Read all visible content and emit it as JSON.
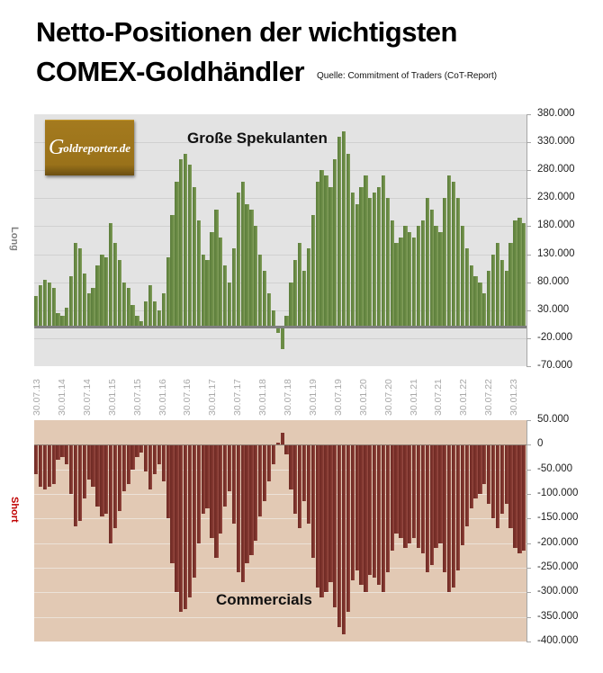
{
  "header": {
    "title_line1": "Netto-Positionen der wichtigsten",
    "title_line2": "COMEX-Goldhändler",
    "source": "Quelle: Commitment of Traders (CoT-Report)"
  },
  "logo": {
    "initial": "G",
    "text": "oldreporter.de"
  },
  "colors": {
    "long_bar": "#6b8c45",
    "short_bar": "#7e332c",
    "top_plot_bg": "#e3e3e3",
    "bottom_plot_bg": "#e2c9b4",
    "long_label": "#808080",
    "short_label": "#c00000"
  },
  "chart_data": [
    {
      "type": "bar",
      "title": "Große Spekulanten",
      "ylabel": "Long",
      "xlabel": "",
      "ylim": [
        -70000,
        380000
      ],
      "yticks": [
        "380.000",
        "330.000",
        "280.000",
        "230.000",
        "180.000",
        "130.000",
        "80.000",
        "30.000",
        "-20.000",
        "-70.000"
      ],
      "ytick_values": [
        380000,
        330000,
        280000,
        230000,
        180000,
        130000,
        80000,
        30000,
        -20000,
        -70000
      ],
      "grid": true,
      "x_tick_labels": [
        "30.07.13",
        "30.01.14",
        "30.07.14",
        "30.01.15",
        "30.07.15",
        "30.01.16",
        "30.07.16",
        "30.01.17",
        "30.07.17",
        "30.01.18",
        "30.07.18",
        "30.01.19",
        "30.07.19",
        "30.01.20",
        "30.07.20",
        "30.01.21",
        "30.07.21",
        "30.01.22",
        "30.07.22",
        "30.01.23"
      ],
      "x_start": "2013-07",
      "x_step": "monthly",
      "values": [
        55000,
        75000,
        85000,
        80000,
        70000,
        25000,
        20000,
        35000,
        90000,
        150000,
        140000,
        95000,
        60000,
        70000,
        110000,
        130000,
        125000,
        185000,
        150000,
        120000,
        80000,
        70000,
        40000,
        20000,
        10000,
        45000,
        75000,
        45000,
        30000,
        60000,
        125000,
        200000,
        260000,
        300000,
        310000,
        290000,
        250000,
        190000,
        130000,
        120000,
        170000,
        210000,
        160000,
        110000,
        80000,
        140000,
        240000,
        260000,
        220000,
        210000,
        180000,
        130000,
        100000,
        60000,
        30000,
        -10000,
        -40000,
        20000,
        80000,
        120000,
        150000,
        100000,
        140000,
        200000,
        260000,
        280000,
        270000,
        250000,
        300000,
        340000,
        350000,
        310000,
        240000,
        220000,
        250000,
        270000,
        230000,
        240000,
        250000,
        270000,
        230000,
        190000,
        150000,
        160000,
        180000,
        170000,
        160000,
        180000,
        190000,
        230000,
        210000,
        180000,
        170000,
        230000,
        270000,
        260000,
        230000,
        180000,
        140000,
        110000,
        90000,
        80000,
        60000,
        100000,
        130000,
        150000,
        120000,
        100000,
        150000,
        190000,
        195000,
        185000
      ]
    },
    {
      "type": "bar",
      "title": "Commercials",
      "ylabel": "Short",
      "xlabel": "",
      "ylim": [
        -400000,
        50000
      ],
      "yticks": [
        "50.000",
        "0",
        "-50.000",
        "-100.000",
        "-150.000",
        "-200.000",
        "-250.000",
        "-300.000",
        "-350.000",
        "-400.000"
      ],
      "ytick_values": [
        50000,
        0,
        -50000,
        -100000,
        -150000,
        -200000,
        -250000,
        -300000,
        -350000,
        -400000
      ],
      "grid": true,
      "x_start": "2013-07",
      "x_step": "monthly",
      "values": [
        -60000,
        -85000,
        -90000,
        -85000,
        -80000,
        -30000,
        -25000,
        -40000,
        -100000,
        -165000,
        -155000,
        -110000,
        -70000,
        -85000,
        -125000,
        -145000,
        -140000,
        -200000,
        -170000,
        -135000,
        -95000,
        -80000,
        -50000,
        -25000,
        -15000,
        -55000,
        -90000,
        -60000,
        -40000,
        -75000,
        -150000,
        -240000,
        -300000,
        -340000,
        -335000,
        -310000,
        -270000,
        -200000,
        -140000,
        -130000,
        -190000,
        -230000,
        -180000,
        -125000,
        -95000,
        -160000,
        -260000,
        -280000,
        -240000,
        -225000,
        -195000,
        -145000,
        -115000,
        -75000,
        -40000,
        5000,
        25000,
        -20000,
        -90000,
        -140000,
        -170000,
        -115000,
        -160000,
        -230000,
        -290000,
        -310000,
        -300000,
        -280000,
        -330000,
        -370000,
        -385000,
        -340000,
        -275000,
        -255000,
        -285000,
        -300000,
        -265000,
        -270000,
        -285000,
        -300000,
        -260000,
        -215000,
        -180000,
        -190000,
        -210000,
        -200000,
        -190000,
        -210000,
        -220000,
        -260000,
        -245000,
        -210000,
        -200000,
        -260000,
        -300000,
        -290000,
        -255000,
        -205000,
        -165000,
        -130000,
        -110000,
        -100000,
        -80000,
        -120000,
        -150000,
        -170000,
        -140000,
        -120000,
        -170000,
        -210000,
        -220000,
        -215000
      ]
    }
  ]
}
